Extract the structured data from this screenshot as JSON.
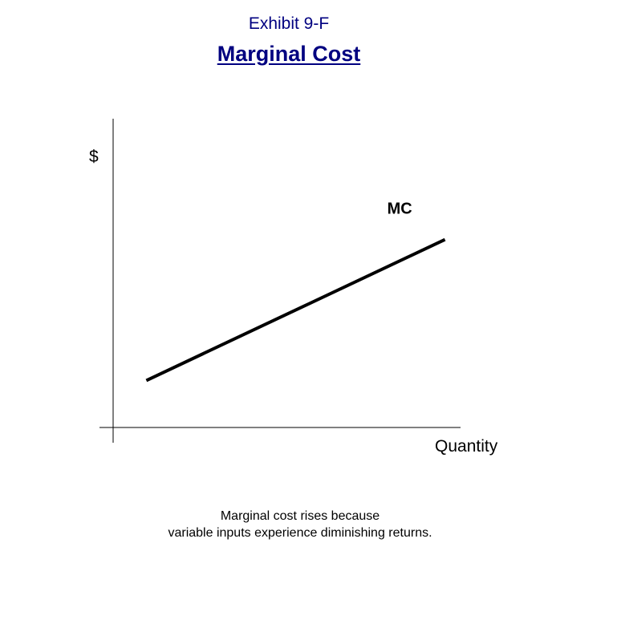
{
  "header": {
    "exhibit": "Exhibit 9-F",
    "title": "Marginal Cost"
  },
  "chart_data": {
    "type": "line",
    "title": "Marginal Cost",
    "ylabel": "$",
    "xlabel": "Quantity",
    "series": [
      {
        "name": "MC",
        "x": [
          1,
          10
        ],
        "y": [
          1,
          4
        ],
        "color": "#000000"
      }
    ],
    "xlim": [
      0,
      11
    ],
    "ylim": [
      0,
      7
    ],
    "grid": false,
    "legend": "none"
  },
  "caption": {
    "line1": "Marginal cost rises because",
    "line2": "variable inputs experience diminishing returns."
  }
}
